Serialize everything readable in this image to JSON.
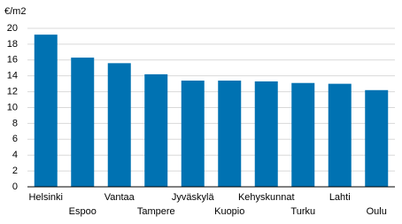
{
  "chart_data": {
    "type": "bar",
    "y_label": "€/m2",
    "categories": [
      "Helsinki",
      "Espoo",
      "Vantaa",
      "Tampere",
      "Jyväskylä",
      "Kuopio",
      "Kehyskunnat",
      "Turku",
      "Lahti",
      "Oulu"
    ],
    "values": [
      19.2,
      16.3,
      15.6,
      14.2,
      13.4,
      13.4,
      13.3,
      13.1,
      13.0,
      12.2
    ],
    "color": "#0072b2",
    "ylim": [
      0,
      21
    ],
    "yticks": [
      0,
      2,
      4,
      6,
      8,
      10,
      12,
      14,
      16,
      18,
      20
    ],
    "grid": true
  }
}
